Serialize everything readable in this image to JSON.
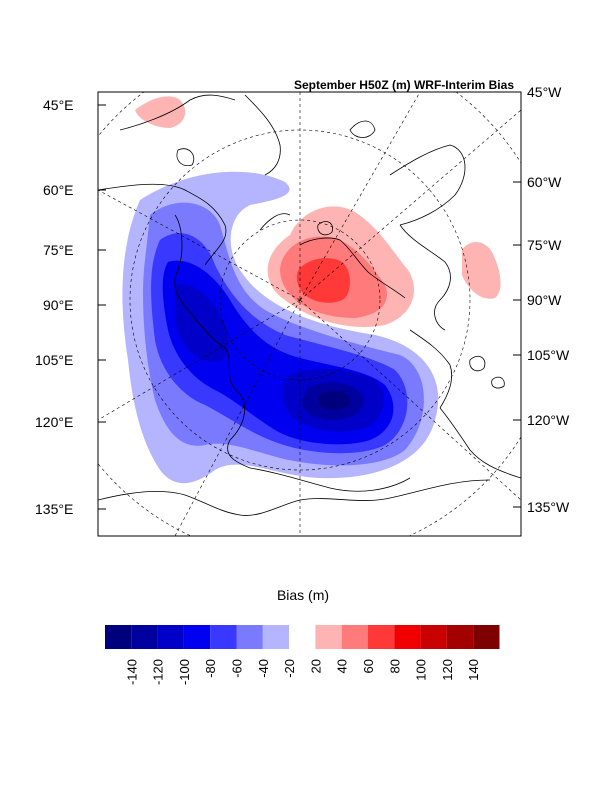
{
  "chart_data": {
    "type": "contour-map",
    "title": "September H50Z (m) WRF-Interim Bias",
    "left_axis_labels": [
      "45°E",
      "60°E",
      "75°E",
      "90°E",
      "105°E",
      "120°E",
      "135°E"
    ],
    "right_axis_labels": [
      "45°W",
      "60°W",
      "75°W",
      "90°W",
      "105°W",
      "120°W",
      "135°W"
    ],
    "colorbar": {
      "title": "Bias (m)",
      "levels": [
        -140,
        -120,
        -100,
        -80,
        -60,
        -40,
        -20,
        20,
        40,
        60,
        80,
        100,
        120,
        140
      ],
      "level_labels": [
        "-140",
        "-120",
        "-100",
        "-80",
        "-60",
        "-40",
        "-20",
        "20",
        "40",
        "60",
        "80",
        "100",
        "120",
        "140"
      ],
      "colors": [
        "#00007f",
        "#00009f",
        "#0000c8",
        "#0000f0",
        "#3838ff",
        "#7a7aff",
        "#b4b4ff",
        "#ffffff",
        "#ffb4b4",
        "#ff7a7a",
        "#ff3838",
        "#f00000",
        "#c80000",
        "#a40000",
        "#7f0000"
      ]
    },
    "fields": {
      "negative_center_min": -140,
      "positive_center_max": 80
    }
  }
}
